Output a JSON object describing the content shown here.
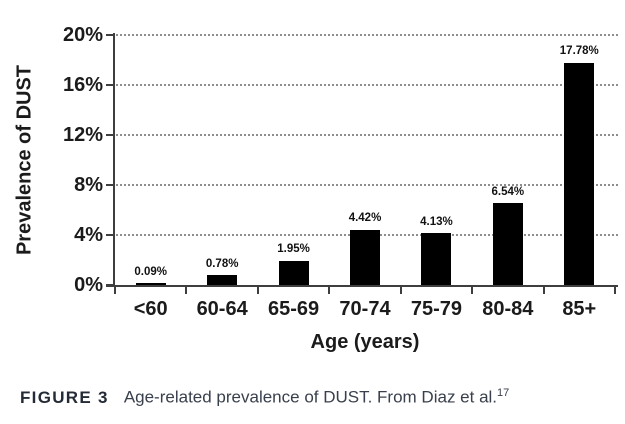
{
  "figure": {
    "caption_label": "FIGURE 3",
    "caption_text": "Age-related prevalence of DUST. From Diaz et al.",
    "caption_ref": "17"
  },
  "chart_data": {
    "type": "bar",
    "title": "",
    "categories": [
      "<60",
      "60-64",
      "65-69",
      "70-74",
      "75-79",
      "80-84",
      "85+"
    ],
    "values": [
      0.09,
      0.78,
      1.95,
      4.42,
      4.13,
      6.54,
      17.78
    ],
    "bar_labels": [
      "0.09%",
      "0.78%",
      "1.95%",
      "4.42%",
      "4.13%",
      "6.54%",
      "17.78%"
    ],
    "xlabel": "Age (years)",
    "ylabel": "Prevalence of DUST",
    "ylim": [
      0,
      20
    ],
    "yticks": [
      0,
      4,
      8,
      12,
      16,
      20
    ],
    "ytick_labels": [
      "0%",
      "4%",
      "8%",
      "12%",
      "16%",
      "20%"
    ],
    "grid": "horizontal dotted, on",
    "legend": "none",
    "bar_color": "#000000",
    "axis_color": "#3e3e3e",
    "gridline_color": "#8d8d8d"
  }
}
